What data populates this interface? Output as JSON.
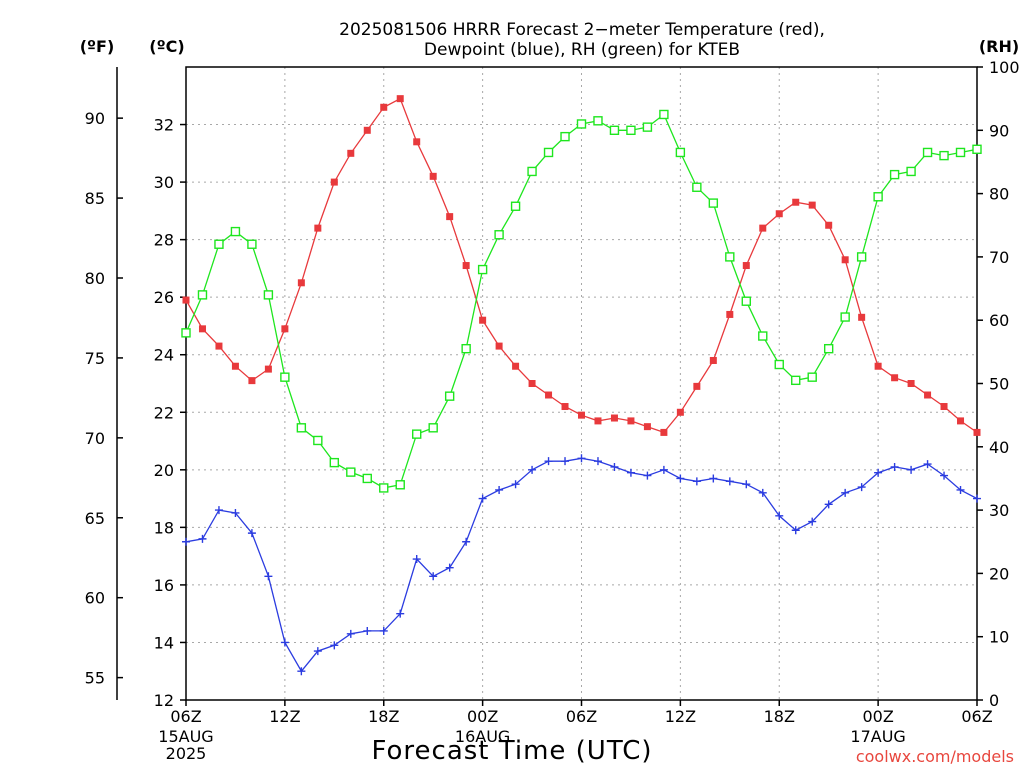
{
  "chart_data": {
    "type": "line",
    "title": [
      "2025081506 HRRR Forecast 2−meter Temperature (red),",
      "Dewpoint (blue), RH (green) for KTEB"
    ],
    "xlabel": "Forecast Time (UTC)",
    "credit": "coolwx.com/models",
    "units": {
      "fahrenheit": "(ºF)",
      "celsius": "(ºC)",
      "rh": "(RH)"
    },
    "x_axis": {
      "start": "2025-08-15T06:00Z",
      "end": "2025-08-17T06:00Z",
      "step_hours": 1,
      "tick_every_hours": 6,
      "tick_labels": [
        "06Z",
        "12Z",
        "18Z",
        "00Z",
        "06Z",
        "12Z",
        "18Z",
        "00Z",
        "06Z"
      ],
      "date_labels": [
        {
          "tick_index": 0,
          "lines": [
            "15AUG",
            "2025"
          ]
        },
        {
          "tick_index": 3,
          "lines": [
            "16AUG"
          ]
        },
        {
          "tick_index": 7,
          "lines": [
            "17AUG"
          ]
        }
      ]
    },
    "y_axes": {
      "celsius": {
        "range": [
          12,
          34
        ],
        "ticks": [
          12,
          14,
          16,
          18,
          20,
          22,
          24,
          26,
          28,
          30,
          32
        ]
      },
      "fahrenheit": {
        "ticks": [
          55,
          60,
          65,
          70,
          75,
          80,
          85,
          90
        ]
      },
      "rh": {
        "range": [
          0,
          100
        ],
        "ticks": [
          0,
          10,
          20,
          30,
          40,
          50,
          60,
          70,
          80,
          90,
          100
        ]
      }
    },
    "grid": true,
    "series": [
      {
        "name": "2−meter Temperature",
        "unit": "°C",
        "axis": "celsius",
        "color": "#e8393c",
        "marker": "filled-square",
        "values": [
          25.9,
          24.9,
          24.3,
          23.6,
          23.1,
          23.5,
          24.9,
          26.5,
          28.4,
          30.0,
          31.0,
          31.8,
          32.6,
          32.9,
          31.4,
          30.2,
          28.8,
          27.1,
          25.2,
          24.3,
          23.6,
          23.0,
          22.6,
          22.2,
          21.9,
          21.7,
          21.8,
          21.7,
          21.5,
          21.3,
          22.0,
          22.9,
          23.8,
          25.4,
          27.1,
          28.4,
          28.9,
          29.3,
          29.2,
          28.5,
          27.3,
          25.3,
          23.6,
          23.2,
          23.0,
          22.6,
          22.2,
          21.7,
          21.3
        ]
      },
      {
        "name": "Dewpoint",
        "unit": "°C",
        "axis": "celsius",
        "color": "#2b3ce0",
        "marker": "plus",
        "values": [
          17.5,
          17.6,
          18.6,
          18.5,
          17.8,
          16.3,
          14.0,
          13.0,
          13.7,
          13.9,
          14.3,
          14.4,
          14.4,
          15.0,
          16.9,
          16.3,
          16.6,
          17.5,
          19.0,
          19.3,
          19.5,
          20.0,
          20.3,
          20.3,
          20.4,
          20.3,
          20.1,
          19.9,
          19.8,
          20.0,
          19.7,
          19.6,
          19.7,
          19.6,
          19.5,
          19.2,
          18.4,
          17.9,
          18.2,
          18.8,
          19.2,
          19.4,
          19.9,
          20.1,
          20.0,
          20.2,
          19.8,
          19.3,
          19.0
        ]
      },
      {
        "name": "RH",
        "unit": "%",
        "axis": "rh",
        "color": "#1ee61e",
        "marker": "open-square",
        "values": [
          58,
          64,
          72,
          74,
          72,
          64,
          51,
          43,
          41,
          37.5,
          36,
          35,
          33.5,
          34,
          42,
          43,
          48,
          55.5,
          68,
          73.5,
          78,
          83.5,
          86.5,
          89,
          91,
          91.5,
          90,
          90,
          90.5,
          92.5,
          86.5,
          81,
          78.5,
          70,
          63,
          57.5,
          53,
          50.5,
          51,
          55.5,
          60.5,
          70,
          79.5,
          83,
          83.5,
          86.5,
          86,
          86.5,
          87
        ]
      }
    ]
  }
}
